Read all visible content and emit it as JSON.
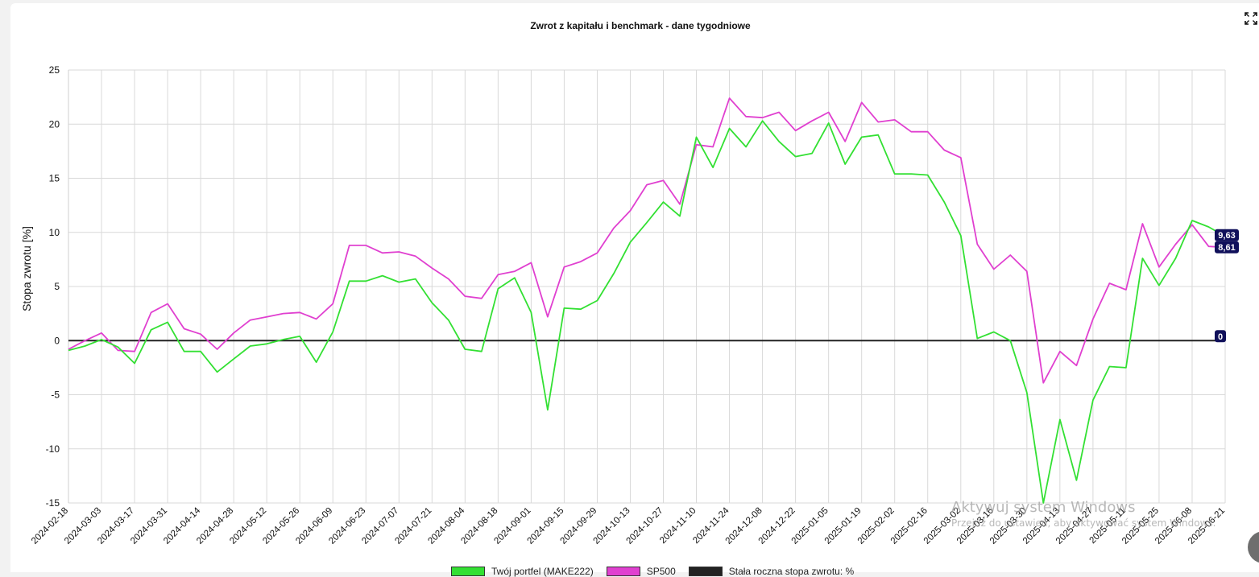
{
  "title": "Zwrot z kapitału i benchmark - dane tygodniowe",
  "watermark": {
    "line1": "Aktywuj system Windows",
    "line2": "Przejdź do ustawień, aby aktywować system Windows."
  },
  "chart_data": {
    "type": "line",
    "title": "Zwrot z kapitału i benchmark - dane tygodniowe",
    "ylabel": "Stopa zwrotu [%]",
    "xlabel": "",
    "ylim": [
      -15,
      25
    ],
    "yticks": [
      "25",
      "20",
      "15",
      "10",
      "5",
      "0",
      "-5",
      "-10",
      "-15"
    ],
    "grid": true,
    "legend_position": "bottom",
    "x": [
      "2024-02-18",
      "2024-02-25",
      "2024-03-03",
      "2024-03-10",
      "2024-03-17",
      "2024-03-24",
      "2024-03-31",
      "2024-04-07",
      "2024-04-14",
      "2024-04-21",
      "2024-04-28",
      "2024-05-05",
      "2024-05-12",
      "2024-05-19",
      "2024-05-26",
      "2024-06-02",
      "2024-06-09",
      "2024-06-16",
      "2024-06-23",
      "2024-06-30",
      "2024-07-07",
      "2024-07-14",
      "2024-07-21",
      "2024-07-28",
      "2024-08-04",
      "2024-08-11",
      "2024-08-18",
      "2024-08-25",
      "2024-09-01",
      "2024-09-08",
      "2024-09-15",
      "2024-09-22",
      "2024-09-29",
      "2024-10-06",
      "2024-10-13",
      "2024-10-20",
      "2024-10-27",
      "2024-11-03",
      "2024-11-10",
      "2024-11-17",
      "2024-11-24",
      "2024-12-01",
      "2024-12-08",
      "2024-12-15",
      "2024-12-22",
      "2024-12-29",
      "2025-01-05",
      "2025-01-12",
      "2025-01-19",
      "2025-01-26",
      "2025-02-02",
      "2025-02-09",
      "2025-02-16",
      "2025-02-23",
      "2025-03-02",
      "2025-03-09",
      "2025-03-16",
      "2025-03-23",
      "2025-03-30",
      "2025-04-06",
      "2025-04-13",
      "2025-04-20",
      "2025-04-27",
      "2025-05-04",
      "2025-05-11",
      "2025-05-18",
      "2025-05-25",
      "2025-06-01",
      "2025-06-08",
      "2025-06-15",
      "2025-06-21"
    ],
    "xtick_labels": [
      "2024-02-18",
      "2024-03-03",
      "2024-03-17",
      "2024-03-31",
      "2024-04-14",
      "2024-04-28",
      "2024-05-12",
      "2024-05-26",
      "2024-06-09",
      "2024-06-23",
      "2024-07-07",
      "2024-07-21",
      "2024-08-04",
      "2024-08-18",
      "2024-09-01",
      "2024-09-15",
      "2024-09-29",
      "2024-10-13",
      "2024-10-27",
      "2024-11-10",
      "2024-11-24",
      "2024-12-08",
      "2024-12-22",
      "2025-01-05",
      "2025-01-19",
      "2025-02-02",
      "2025-02-16",
      "2025-03-02",
      "2025-03-16",
      "2025-03-30",
      "2025-04-13",
      "2025-04-27",
      "2025-05-11",
      "2025-05-25",
      "2025-06-08",
      "2025-06-21"
    ],
    "series": [
      {
        "name": "Twój portfel (MAKE222)",
        "color": "#33e033",
        "end_label": "9,63",
        "values": [
          -0.9,
          -0.5,
          0.1,
          -0.6,
          -2.1,
          1.0,
          1.7,
          -1.0,
          -1.0,
          -2.9,
          -1.7,
          -0.5,
          -0.3,
          0.1,
          0.4,
          -2.0,
          0.8,
          5.5,
          5.5,
          6.0,
          5.4,
          5.7,
          3.5,
          1.9,
          -0.8,
          -1.0,
          4.8,
          5.8,
          2.6,
          -6.4,
          3.0,
          2.9,
          3.7,
          6.2,
          9.1,
          10.9,
          12.8,
          11.5,
          18.8,
          16.0,
          19.6,
          17.9,
          20.3,
          18.4,
          17.0,
          17.3,
          20.1,
          16.3,
          18.8,
          19.0,
          15.4,
          15.4,
          15.3,
          12.8,
          9.7,
          0.2,
          0.8,
          0.0,
          -4.8,
          -15.0,
          -7.3,
          -12.9,
          -5.5,
          -2.4,
          -2.5,
          7.6,
          5.1,
          7.6,
          11.1,
          10.5,
          9.63
        ]
      },
      {
        "name": "SP500",
        "color": "#e040d0",
        "end_label": "8,61",
        "values": [
          -0.8,
          0.0,
          0.7,
          -0.9,
          -1.0,
          2.6,
          3.4,
          1.1,
          0.6,
          -0.8,
          0.7,
          1.9,
          2.2,
          2.5,
          2.6,
          2.0,
          3.4,
          8.8,
          8.8,
          8.1,
          8.2,
          7.8,
          6.7,
          5.7,
          4.1,
          3.9,
          6.1,
          6.4,
          7.2,
          2.2,
          6.8,
          7.3,
          8.1,
          10.4,
          12.0,
          14.4,
          14.8,
          12.6,
          18.1,
          17.9,
          22.4,
          20.7,
          20.6,
          21.1,
          19.4,
          20.3,
          21.1,
          18.4,
          22.0,
          20.2,
          20.4,
          19.3,
          19.3,
          17.6,
          16.9,
          8.9,
          6.6,
          7.9,
          6.4,
          -3.9,
          -1.0,
          -2.3,
          2.0,
          5.3,
          4.7,
          10.8,
          6.8,
          8.9,
          10.7,
          8.7,
          8.61
        ]
      },
      {
        "name": "Stała roczna stopa zwrotu: %",
        "color": "#222222",
        "end_label": "0",
        "values": [
          0,
          0,
          0,
          0,
          0,
          0,
          0,
          0,
          0,
          0,
          0,
          0,
          0,
          0,
          0,
          0,
          0,
          0,
          0,
          0,
          0,
          0,
          0,
          0,
          0,
          0,
          0,
          0,
          0,
          0,
          0,
          0,
          0,
          0,
          0,
          0,
          0,
          0,
          0,
          0,
          0,
          0,
          0,
          0,
          0,
          0,
          0,
          0,
          0,
          0,
          0,
          0,
          0,
          0,
          0,
          0,
          0,
          0,
          0,
          0,
          0,
          0,
          0,
          0,
          0,
          0,
          0,
          0,
          0,
          0,
          0
        ]
      }
    ]
  }
}
